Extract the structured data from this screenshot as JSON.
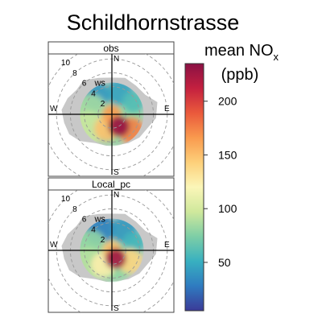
{
  "chart_data": {
    "type": "polar_heatmap",
    "title": "Schildhornstrasse",
    "colorbar": {
      "label": "mean NO",
      "label_subscript": "x",
      "unit": "(ppb)",
      "min": 5,
      "max": 235,
      "ticks": [
        50,
        100,
        150,
        200
      ],
      "tick_labels": [
        "50",
        "100",
        "150",
        "200"
      ],
      "colors": [
        "#3b3a98",
        "#2f7bc0",
        "#38b0c0",
        "#7dcea6",
        "#cfe89c",
        "#fbf6b8",
        "#fdd07a",
        "#f99a4e",
        "#ea5a3c",
        "#c4203f",
        "#8a1144"
      ]
    },
    "directions": [
      "N",
      "E",
      "S",
      "W"
    ],
    "ws_label": "ws",
    "rings": [
      {
        "ws": 2,
        "label": "2"
      },
      {
        "ws": 4,
        "label": "4"
      },
      {
        "ws": 6,
        "label": "6"
      },
      {
        "ws": 8,
        "label": "8"
      },
      {
        "ws": 10,
        "label": "10"
      }
    ],
    "panels": [
      {
        "name": "obs",
        "no_data_color": "#c8c8c8",
        "hotspots": [
          {
            "wd": 150,
            "ws": 2.0,
            "value": 232,
            "spread_ws": 1.5
          },
          {
            "wd": 130,
            "ws": 3.6,
            "value": 175,
            "spread_ws": 1.9
          },
          {
            "wd": 200,
            "ws": 2.2,
            "value": 150,
            "spread_ws": 1.8
          },
          {
            "wd": 0,
            "ws": 0.0,
            "value": 165,
            "spread_ws": 1.4
          },
          {
            "wd": 320,
            "ws": 3.6,
            "value": 40,
            "spread_ws": 2.0
          },
          {
            "wd": 20,
            "ws": 3.4,
            "value": 45,
            "spread_ws": 1.9
          },
          {
            "wd": 60,
            "ws": 3.6,
            "value": 60,
            "spread_ws": 1.6
          },
          {
            "wd": 280,
            "ws": 3.2,
            "value": 85,
            "spread_ws": 2.4
          },
          {
            "wd": 240,
            "ws": 4.0,
            "value": 95,
            "spread_ws": 2.4
          }
        ]
      },
      {
        "name": "Local_pc",
        "no_data_color": "#c8c8c8",
        "hotspots": [
          {
            "wd": 155,
            "ws": 1.3,
            "value": 228,
            "spread_ws": 1.5
          },
          {
            "wd": 120,
            "ws": 3.0,
            "value": 140,
            "spread_ws": 1.8
          },
          {
            "wd": 210,
            "ws": 2.4,
            "value": 125,
            "spread_ws": 1.8
          },
          {
            "wd": 0,
            "ws": 0.0,
            "value": 150,
            "spread_ws": 1.4
          },
          {
            "wd": 330,
            "ws": 3.6,
            "value": 30,
            "spread_ws": 2.2
          },
          {
            "wd": 30,
            "ws": 3.4,
            "value": 40,
            "spread_ws": 1.9
          },
          {
            "wd": 70,
            "ws": 3.4,
            "value": 55,
            "spread_ws": 1.6
          },
          {
            "wd": 280,
            "ws": 3.2,
            "value": 80,
            "spread_ws": 2.4
          },
          {
            "wd": 240,
            "ws": 4.0,
            "value": 90,
            "spread_ws": 2.4
          }
        ]
      }
    ]
  }
}
